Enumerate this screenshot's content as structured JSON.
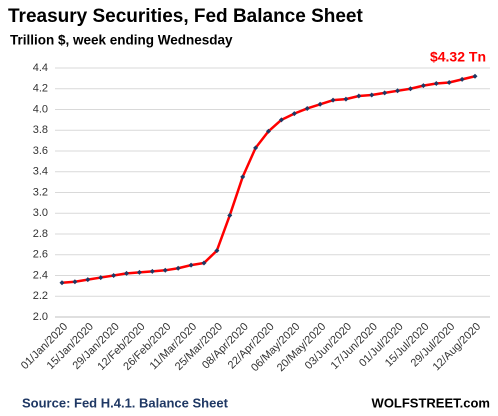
{
  "chart_data": {
    "type": "line",
    "title": "Treasury Securities, Fed Balance Sheet",
    "subtitle": "Trillion $, week ending Wednesday",
    "annotation": "$4.32 Tn",
    "source": "Source: Fed H.4.1. Balance Sheet",
    "watermark": "WOLFSTREET.com",
    "categories": [
      "01/Jan/2020",
      null,
      "15/Jan/2020",
      null,
      "29/Jan/2020",
      null,
      "12/Feb/2020",
      null,
      "26/Feb/2020",
      null,
      "11/Mar/2020",
      null,
      "25/Mar/2020",
      null,
      "08/Apr/2020",
      null,
      "22/Apr/2020",
      null,
      "06/May/2020",
      null,
      "20/May/2020",
      null,
      "03/Jun/2020",
      null,
      "17/Jun/2020",
      null,
      "01/Jul/2020",
      null,
      "15/Jul/2020",
      null,
      "29/Jul/2020",
      null,
      "12/Aug/2020"
    ],
    "series": [
      {
        "name": "Treasury Securities",
        "color": "#ff0000",
        "marker_color": "#1f3864",
        "values": [
          2.33,
          2.34,
          2.36,
          2.38,
          2.4,
          2.42,
          2.43,
          2.44,
          2.45,
          2.47,
          2.5,
          2.52,
          2.64,
          2.98,
          3.35,
          3.63,
          3.79,
          3.9,
          3.96,
          4.01,
          4.05,
          4.09,
          4.1,
          4.13,
          4.14,
          4.16,
          4.18,
          4.2,
          4.23,
          4.25,
          4.26,
          4.29,
          4.32
        ]
      }
    ],
    "ylim": [
      2.0,
      4.5
    ],
    "yticks": [
      {
        "value": 2.0,
        "label": "2.0"
      },
      2.2,
      2.4,
      2.6,
      2.8,
      {
        "value": 3.0,
        "label": "3.0"
      },
      3.2,
      3.4,
      3.6,
      3.8,
      {
        "value": 4.0,
        "label": "4.0"
      },
      4.2,
      4.4
    ],
    "grid": true
  }
}
